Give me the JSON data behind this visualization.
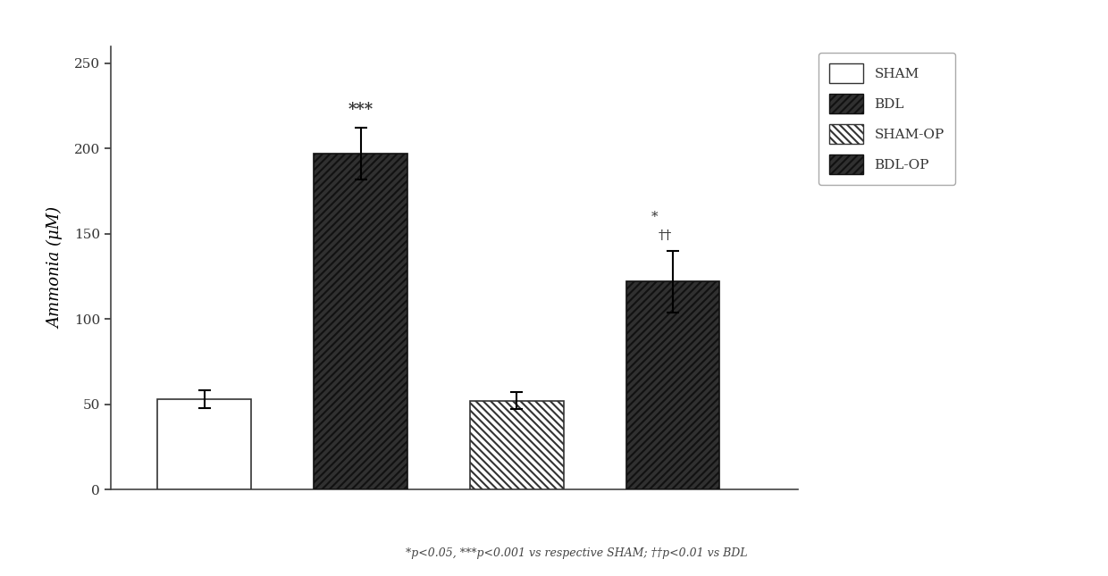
{
  "categories": [
    "SHAM",
    "BDL",
    "SHAM-OP",
    "BDL-OP"
  ],
  "values": [
    53,
    197,
    52,
    122
  ],
  "errors": [
    5,
    15,
    5,
    18
  ],
  "ylabel": "Ammonia (μM)",
  "ylim": [
    0,
    260
  ],
  "yticks": [
    0,
    50,
    100,
    150,
    200,
    250
  ],
  "bar_width": 0.6,
  "bar_positions": [
    1,
    2,
    3,
    4
  ],
  "footnote": "*p<0.05, ***p<0.001 vs respective SHAM; ††p<0.01 vs BDL",
  "annotations": {
    "BDL": "***",
    "BDL-OP_star": "*",
    "BDL-OP_dagger": "††"
  },
  "legend_labels": [
    "SHAM",
    "BDL",
    "SHAM-OP",
    "BDL-OP"
  ],
  "bar_facecolors": [
    "white",
    "#303030",
    "white",
    "#303030"
  ],
  "bar_edgecolors": [
    "#333333",
    "#111111",
    "#333333",
    "#111111"
  ],
  "hatch_patterns": [
    "",
    "////",
    "\\\\\\\\",
    "////"
  ],
  "hatch_colors": [
    "#333333",
    "#aaaaaa",
    "#555555",
    "#aaaaaa"
  ],
  "fig_width": 12.4,
  "fig_height": 6.45,
  "dpi": 100
}
